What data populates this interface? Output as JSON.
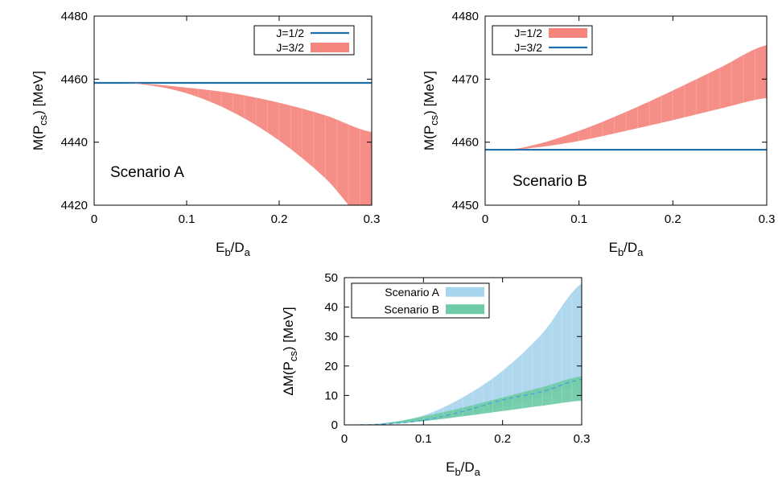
{
  "chart_data": [
    {
      "id": "A",
      "type": "area",
      "xlabel": {
        "main": "E",
        "sub1": "b",
        "mid": "/D",
        "sub2": "a"
      },
      "ylabel": {
        "pre": "M(P",
        "sub": "cs",
        "post": ") [MeV]"
      },
      "xlim": [
        0,
        0.3
      ],
      "ylim": [
        4420,
        4480
      ],
      "xticks": [
        0,
        0.1,
        0.2,
        0.3
      ],
      "xtick_labels": [
        "0",
        "0.1",
        "0.2",
        "0.3"
      ],
      "yticks": [
        4420,
        4440,
        4460,
        4480
      ],
      "ytick_labels": [
        "4420",
        "4440",
        "4460",
        "4480"
      ],
      "annotation": "Scenario A",
      "legend_position": "top-right",
      "series": [
        {
          "name": "J=1/2",
          "kind": "line",
          "color": "#1f6fad",
          "x": [
            0,
            0.3
          ],
          "y": [
            4458.8,
            4458.8
          ]
        },
        {
          "name": "J=3/2",
          "kind": "band",
          "color": "#f4847c",
          "x": [
            0.02,
            0.05,
            0.1,
            0.15,
            0.2,
            0.25,
            0.3
          ],
          "y_upper": [
            4458.8,
            4458.6,
            4457.3,
            4455.5,
            4452.5,
            4448.5,
            4443.2
          ],
          "y_lower": [
            4458.8,
            4458.4,
            4455.5,
            4449.5,
            4440.5,
            4428.5,
            4413.0
          ]
        }
      ]
    },
    {
      "id": "B",
      "type": "area",
      "xlabel": {
        "main": "E",
        "sub1": "b",
        "mid": "/D",
        "sub2": "a"
      },
      "ylabel": {
        "pre": "M(P",
        "sub": "cs",
        "post": ") [MeV]"
      },
      "xlim": [
        0,
        0.3
      ],
      "ylim": [
        4450,
        4480
      ],
      "xticks": [
        0,
        0.1,
        0.2,
        0.3
      ],
      "xtick_labels": [
        "0",
        "0.1",
        "0.2",
        "0.3"
      ],
      "yticks": [
        4450,
        4460,
        4470,
        4480
      ],
      "ytick_labels": [
        "4450",
        "4460",
        "4470",
        "4480"
      ],
      "annotation": "Scenario B",
      "legend_position": "top-left",
      "series": [
        {
          "name": "J=1/2",
          "kind": "band",
          "color": "#f4847c",
          "x": [
            0.02,
            0.05,
            0.1,
            0.15,
            0.2,
            0.25,
            0.3
          ],
          "y_upper": [
            4458.8,
            4459.5,
            4461.8,
            4464.8,
            4468.2,
            4471.8,
            4475.4
          ],
          "y_lower": [
            4458.8,
            4459.1,
            4460.2,
            4461.8,
            4463.5,
            4465.3,
            4467.0
          ]
        },
        {
          "name": "J=3/2",
          "kind": "line",
          "color": "#1f6fad",
          "x": [
            0,
            0.3
          ],
          "y": [
            4458.8,
            4458.8
          ]
        }
      ]
    },
    {
      "id": "C",
      "type": "area",
      "xlabel": {
        "main": "E",
        "sub1": "b",
        "mid": "/D",
        "sub2": "a"
      },
      "ylabel": {
        "pre": "ΔM(P",
        "sub": "cs",
        "post": ") [MeV]"
      },
      "xlim": [
        0,
        0.3
      ],
      "ylim": [
        0,
        50
      ],
      "xticks": [
        0,
        0.1,
        0.2,
        0.3
      ],
      "xtick_labels": [
        "0",
        "0.1",
        "0.2",
        "0.3"
      ],
      "yticks": [
        0,
        10,
        20,
        30,
        40,
        50
      ],
      "ytick_labels": [
        "0",
        "10",
        "20",
        "30",
        "40",
        "50"
      ],
      "annotation": "",
      "legend_position": "top-left",
      "series": [
        {
          "name": "Scenario A",
          "kind": "band",
          "color": "#a8d5ee",
          "x": [
            0.02,
            0.05,
            0.1,
            0.15,
            0.2,
            0.25,
            0.3
          ],
          "y_upper": [
            0,
            0.4,
            3.2,
            9.4,
            18.4,
            31.0,
            48.0
          ],
          "y_lower": [
            0,
            0.2,
            1.3,
            3.2,
            6.0,
            9.5,
            13.5
          ]
        },
        {
          "name": "Scenario B",
          "kind": "band",
          "color": "#6ecba6",
          "x": [
            0.02,
            0.05,
            0.1,
            0.15,
            0.2,
            0.25,
            0.3
          ],
          "y_upper": [
            0,
            0.6,
            2.9,
            5.9,
            9.3,
            12.8,
            16.5
          ],
          "y_lower": [
            0,
            0.3,
            1.3,
            2.9,
            4.7,
            6.5,
            8.2
          ]
        },
        {
          "name": "",
          "kind": "dashed",
          "color": "#4aa3d8",
          "x": [
            0.02,
            0.05,
            0.1,
            0.15,
            0.2,
            0.25,
            0.3
          ],
          "y": [
            0,
            0.3,
            1.6,
            4.6,
            8.5,
            11.3,
            15.5
          ]
        }
      ]
    }
  ]
}
